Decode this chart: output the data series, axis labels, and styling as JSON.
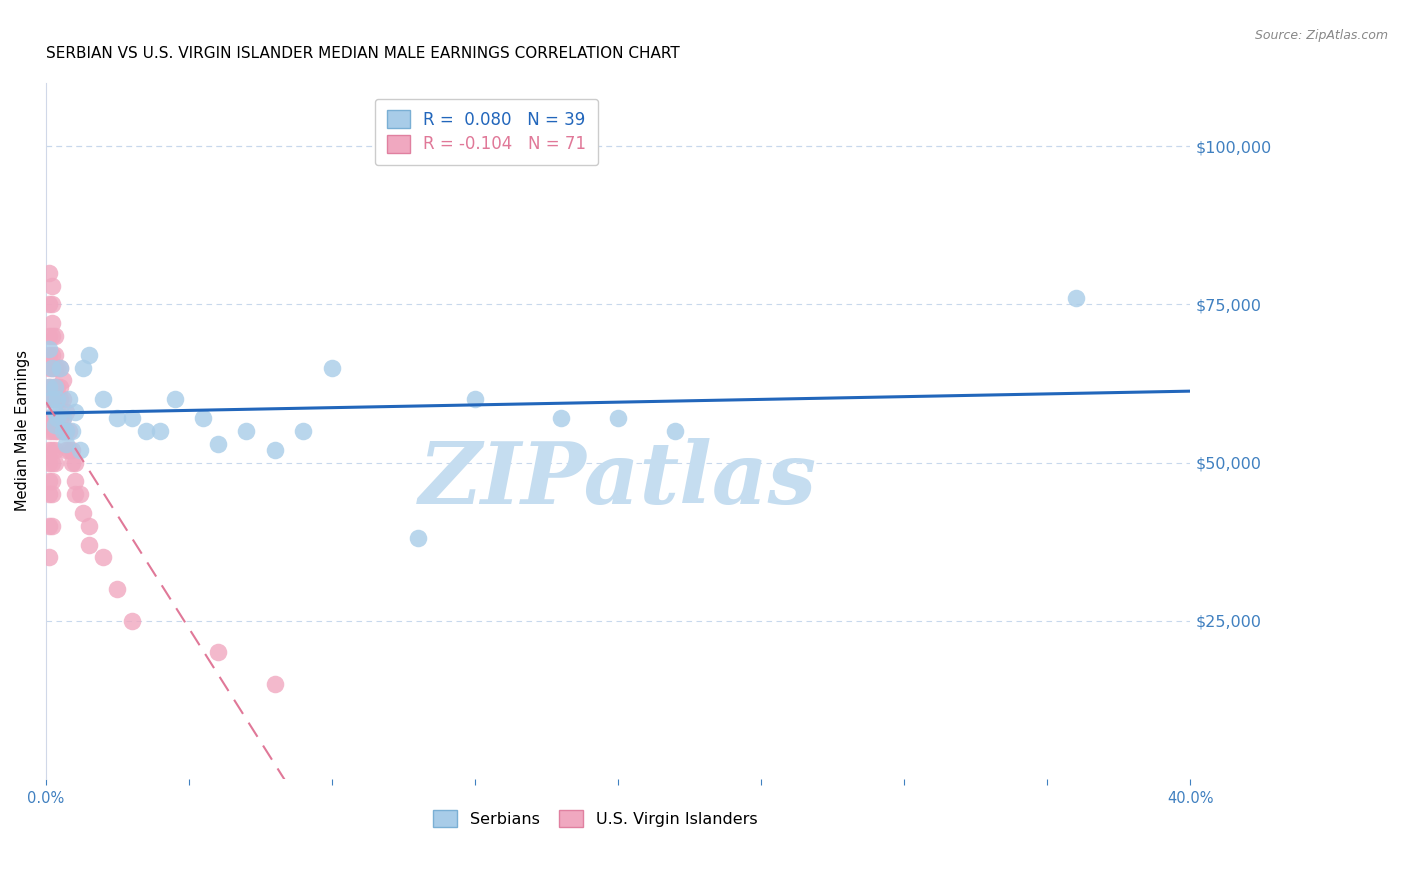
{
  "title": "SERBIAN VS U.S. VIRGIN ISLANDER MEDIAN MALE EARNINGS CORRELATION CHART",
  "source": "Source: ZipAtlas.com",
  "ylabel": "Median Male Earnings",
  "xlim": [
    0.0,
    0.4
  ],
  "ylim": [
    0,
    110000
  ],
  "xticks": [
    0.0,
    0.05,
    0.1,
    0.15,
    0.2,
    0.25,
    0.3,
    0.35,
    0.4
  ],
  "xticklabels": [
    "0.0%",
    "",
    "",
    "",
    "",
    "",
    "",
    "",
    "40.0%"
  ],
  "yticks_right": [
    25000,
    50000,
    75000,
    100000
  ],
  "yticklabels_right": [
    "$25,000",
    "$50,000",
    "$75,000",
    "$100,000"
  ],
  "watermark": "ZIPatlas",
  "watermark_color": "#c5ddf0",
  "serbian_color": "#a8cce8",
  "serbian_edge_color": "#7aafd4",
  "serbian_trend_color": "#2266bb",
  "serbian_R": 0.08,
  "serbian_N": 39,
  "serbian_x": [
    0.001,
    0.001,
    0.002,
    0.002,
    0.003,
    0.003,
    0.003,
    0.004,
    0.004,
    0.005,
    0.005,
    0.006,
    0.006,
    0.007,
    0.007,
    0.008,
    0.009,
    0.01,
    0.012,
    0.013,
    0.015,
    0.02,
    0.025,
    0.03,
    0.035,
    0.04,
    0.045,
    0.055,
    0.06,
    0.07,
    0.08,
    0.09,
    0.1,
    0.13,
    0.15,
    0.18,
    0.2,
    0.22,
    0.36
  ],
  "serbian_y": [
    62000,
    68000,
    60000,
    65000,
    58000,
    62000,
    56000,
    57000,
    60000,
    65000,
    58000,
    57000,
    55000,
    55000,
    53000,
    60000,
    55000,
    58000,
    52000,
    65000,
    67000,
    60000,
    57000,
    57000,
    55000,
    55000,
    60000,
    57000,
    53000,
    55000,
    52000,
    55000,
    65000,
    38000,
    60000,
    57000,
    57000,
    55000,
    76000
  ],
  "vi_color": "#f0a8c0",
  "vi_edge_color": "#e080a0",
  "vi_trend_color": "#e07898",
  "vi_R": -0.104,
  "vi_N": 71,
  "vi_x": [
    0.001,
    0.001,
    0.001,
    0.001,
    0.001,
    0.001,
    0.001,
    0.001,
    0.001,
    0.001,
    0.001,
    0.001,
    0.001,
    0.001,
    0.001,
    0.002,
    0.002,
    0.002,
    0.002,
    0.002,
    0.002,
    0.002,
    0.002,
    0.002,
    0.002,
    0.002,
    0.002,
    0.002,
    0.002,
    0.002,
    0.003,
    0.003,
    0.003,
    0.003,
    0.003,
    0.003,
    0.003,
    0.003,
    0.003,
    0.004,
    0.004,
    0.004,
    0.004,
    0.004,
    0.005,
    0.005,
    0.005,
    0.005,
    0.006,
    0.006,
    0.006,
    0.006,
    0.007,
    0.007,
    0.007,
    0.008,
    0.008,
    0.009,
    0.009,
    0.01,
    0.01,
    0.01,
    0.012,
    0.013,
    0.015,
    0.015,
    0.02,
    0.025,
    0.03,
    0.06,
    0.08
  ],
  "vi_y": [
    80000,
    75000,
    70000,
    67000,
    65000,
    62000,
    60000,
    57000,
    55000,
    52000,
    50000,
    47000,
    45000,
    40000,
    35000,
    78000,
    75000,
    72000,
    70000,
    67000,
    65000,
    62000,
    60000,
    57000,
    55000,
    52000,
    50000,
    47000,
    45000,
    40000,
    70000,
    67000,
    65000,
    62000,
    60000,
    57000,
    55000,
    52000,
    50000,
    65000,
    62000,
    60000,
    57000,
    55000,
    65000,
    62000,
    60000,
    57000,
    63000,
    60000,
    57000,
    55000,
    58000,
    55000,
    52000,
    55000,
    52000,
    52000,
    50000,
    50000,
    47000,
    45000,
    45000,
    42000,
    40000,
    37000,
    35000,
    30000,
    25000,
    20000,
    15000
  ],
  "tick_color": "#4080c0",
  "grid_color": "#c8d8ec",
  "bg_color": "#ffffff",
  "title_fontsize": 11,
  "serbians_label": "Serbians",
  "vi_label": "U.S. Virgin Islanders"
}
